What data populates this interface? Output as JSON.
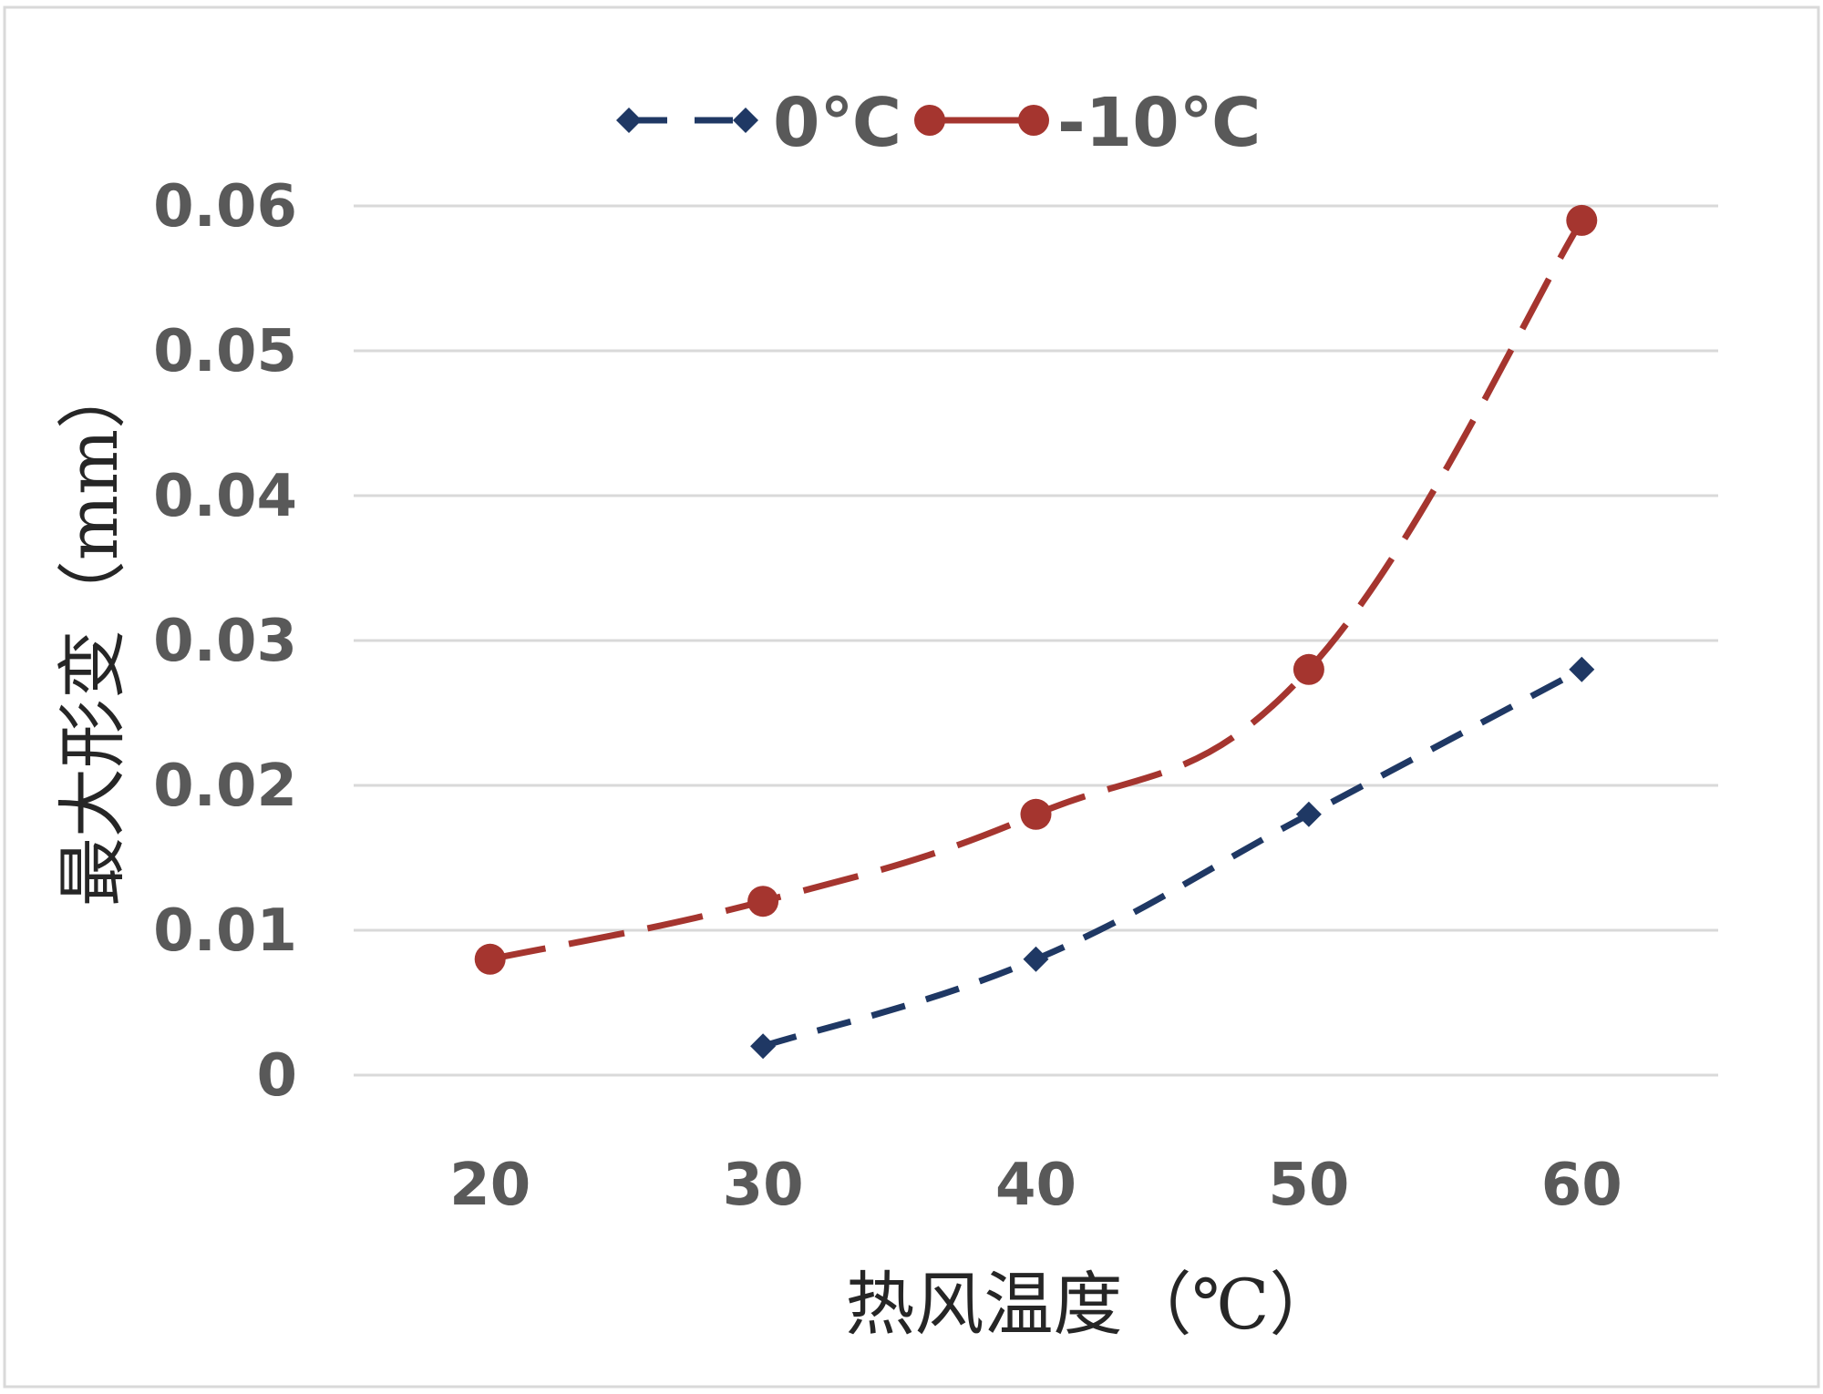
{
  "chart_data": {
    "type": "line",
    "x": [
      20,
      30,
      40,
      50,
      60
    ],
    "xlabel": "热风温度（℃）",
    "ylabel": "最大形变（mm）",
    "ylim": [
      0,
      0.06
    ],
    "xlim": [
      15,
      65
    ],
    "yticks": [
      "0",
      "0.01",
      "0.02",
      "0.03",
      "0.04",
      "0.05",
      "0.06"
    ],
    "xticks": [
      "20",
      "30",
      "40",
      "50",
      "60"
    ],
    "grid": "horizontal",
    "legend": "top-center",
    "series": [
      {
        "name": "0℃",
        "color": "#1f3864",
        "marker": "diamond",
        "line": "dashed",
        "points": [
          [
            30,
            0.002
          ],
          [
            40,
            0.008
          ],
          [
            50,
            0.018
          ],
          [
            60,
            0.028
          ]
        ]
      },
      {
        "name": "-10℃",
        "color": "#a5352f",
        "marker": "circle",
        "line": "dashed",
        "points": [
          [
            20,
            0.008
          ],
          [
            30,
            0.012
          ],
          [
            40,
            0.018
          ],
          [
            50,
            0.028
          ],
          [
            60,
            0.059
          ]
        ]
      }
    ]
  }
}
